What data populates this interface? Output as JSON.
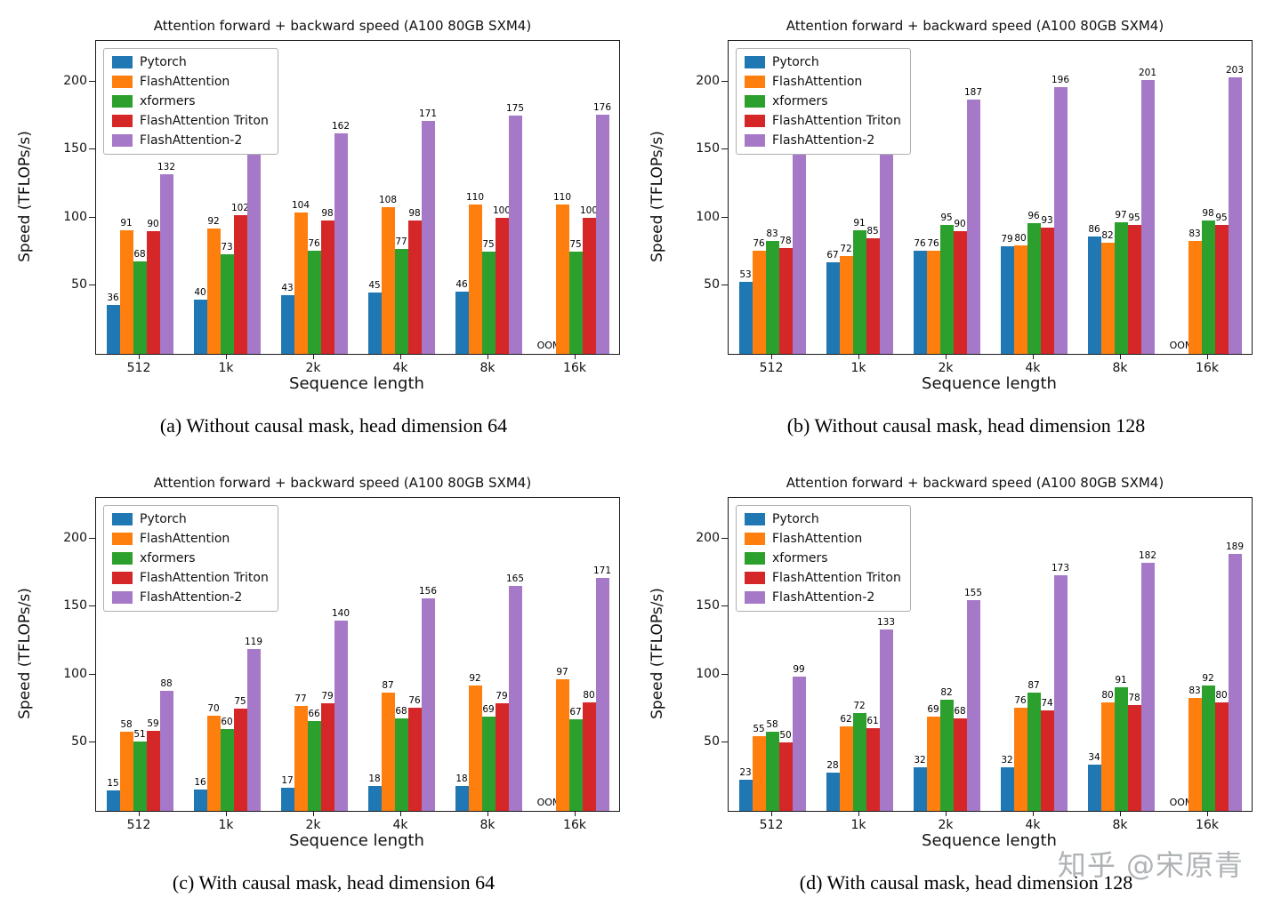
{
  "watermark": "知乎 @宋原青",
  "chart_data": [
    {
      "type": "bar",
      "title": "Attention forward + backward speed (A100 80GB SXM4)",
      "xlabel": "Sequence length",
      "ylabel": "Speed (TFLOPs/s)",
      "caption": "(a) Without causal mask, head dimension 64",
      "categories": [
        "512",
        "1k",
        "2k",
        "4k",
        "8k",
        "16k"
      ],
      "ylim": [
        0,
        230
      ],
      "yticks": [
        50,
        100,
        150,
        200
      ],
      "legend_position": "upper left",
      "grid": false,
      "missing_label": "OOM",
      "series": [
        {
          "name": "Pytorch",
          "color": "#1f77b4",
          "values": [
            36,
            40,
            43,
            45,
            46,
            null
          ]
        },
        {
          "name": "FlashAttention",
          "color": "#ff7f0e",
          "values": [
            91,
            92,
            104,
            108,
            110,
            110
          ]
        },
        {
          "name": "xformers",
          "color": "#2ca02c",
          "values": [
            68,
            73,
            76,
            77,
            75,
            75
          ]
        },
        {
          "name": "FlashAttention Triton",
          "color": "#d62728",
          "values": [
            90,
            102,
            98,
            98,
            100,
            100
          ]
        },
        {
          "name": "FlashAttention-2",
          "color": "#a678c8",
          "values": [
            132,
            153,
            162,
            171,
            175,
            176
          ]
        }
      ]
    },
    {
      "type": "bar",
      "title": "Attention forward + backward speed (A100 80GB SXM4)",
      "xlabel": "Sequence length",
      "ylabel": "Speed (TFLOPs/s)",
      "caption": "(b) Without causal mask, head dimension 128",
      "categories": [
        "512",
        "1k",
        "2k",
        "4k",
        "8k",
        "16k"
      ],
      "ylim": [
        0,
        230
      ],
      "yticks": [
        50,
        100,
        150,
        200
      ],
      "legend_position": "upper left",
      "grid": false,
      "missing_label": "OOM",
      "series": [
        {
          "name": "Pytorch",
          "color": "#1f77b4",
          "values": [
            53,
            67,
            76,
            79,
            86,
            null
          ]
        },
        {
          "name": "FlashAttention",
          "color": "#ff7f0e",
          "values": [
            76,
            72,
            76,
            80,
            82,
            83
          ]
        },
        {
          "name": "xformers",
          "color": "#2ca02c",
          "values": [
            83,
            91,
            95,
            96,
            97,
            98
          ]
        },
        {
          "name": "FlashAttention Triton",
          "color": "#d62728",
          "values": [
            78,
            85,
            90,
            93,
            95,
            95
          ]
        },
        {
          "name": "FlashAttention-2",
          "color": "#a678c8",
          "values": [
            150,
            173,
            187,
            196,
            201,
            203
          ]
        }
      ]
    },
    {
      "type": "bar",
      "title": "Attention forward + backward speed (A100 80GB SXM4)",
      "xlabel": "Sequence length",
      "ylabel": "Speed (TFLOPs/s)",
      "caption": "(c) With causal mask, head dimension 64",
      "categories": [
        "512",
        "1k",
        "2k",
        "4k",
        "8k",
        "16k"
      ],
      "ylim": [
        0,
        230
      ],
      "yticks": [
        50,
        100,
        150,
        200
      ],
      "legend_position": "upper left",
      "grid": false,
      "missing_label": "OOM",
      "series": [
        {
          "name": "Pytorch",
          "color": "#1f77b4",
          "values": [
            15,
            16,
            17,
            18,
            18,
            null
          ]
        },
        {
          "name": "FlashAttention",
          "color": "#ff7f0e",
          "values": [
            58,
            70,
            77,
            87,
            92,
            97
          ]
        },
        {
          "name": "xformers",
          "color": "#2ca02c",
          "values": [
            51,
            60,
            66,
            68,
            69,
            67
          ]
        },
        {
          "name": "FlashAttention Triton",
          "color": "#d62728",
          "values": [
            59,
            75,
            79,
            76,
            79,
            80
          ]
        },
        {
          "name": "FlashAttention-2",
          "color": "#a678c8",
          "values": [
            88,
            119,
            140,
            156,
            165,
            171
          ]
        }
      ]
    },
    {
      "type": "bar",
      "title": "Attention forward + backward speed (A100 80GB SXM4)",
      "xlabel": "Sequence length",
      "ylabel": "Speed (TFLOPs/s)",
      "caption": "(d) With causal mask, head dimension 128",
      "categories": [
        "512",
        "1k",
        "2k",
        "4k",
        "8k",
        "16k"
      ],
      "ylim": [
        0,
        230
      ],
      "yticks": [
        50,
        100,
        150,
        200
      ],
      "legend_position": "upper left",
      "grid": false,
      "missing_label": "OOM",
      "series": [
        {
          "name": "Pytorch",
          "color": "#1f77b4",
          "values": [
            23,
            28,
            32,
            32,
            34,
            null
          ]
        },
        {
          "name": "FlashAttention",
          "color": "#ff7f0e",
          "values": [
            55,
            62,
            69,
            76,
            80,
            83
          ]
        },
        {
          "name": "xformers",
          "color": "#2ca02c",
          "values": [
            58,
            72,
            82,
            87,
            91,
            92
          ]
        },
        {
          "name": "FlashAttention Triton",
          "color": "#d62728",
          "values": [
            50,
            61,
            68,
            74,
            78,
            80
          ]
        },
        {
          "name": "FlashAttention-2",
          "color": "#a678c8",
          "values": [
            99,
            133,
            155,
            173,
            182,
            189
          ]
        }
      ]
    }
  ]
}
